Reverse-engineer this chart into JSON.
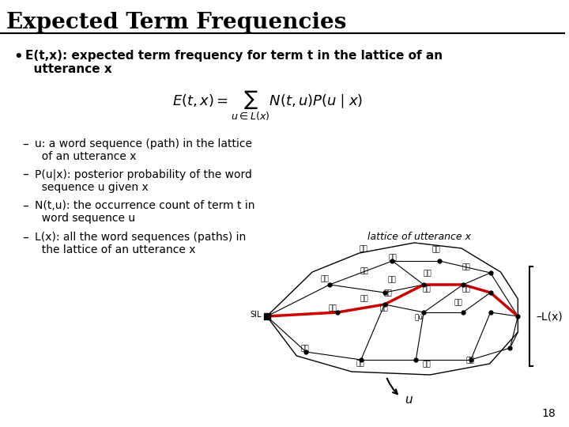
{
  "title": "Expected Term Frequencies",
  "bg_color": "#ffffff",
  "title_color": "#000000",
  "title_fontsize": 20,
  "dash_items": [
    "u: a word sequence (path) in the lattice\n  of an utterance x",
    "P(u|x): posterior probability of the word\n  sequence u given x",
    "N(t,u): the occurrence count of term t in\n  word sequence u",
    "L(x): all the word sequences (paths) in\n  the lattice of an utterance x"
  ],
  "lattice_label": "lattice of utterance x",
  "lx_label": "L(x)",
  "u_label": "u",
  "page_num": "18",
  "line_color": "#000000",
  "red_line_color": "#cc0000",
  "node_color": "#000000"
}
